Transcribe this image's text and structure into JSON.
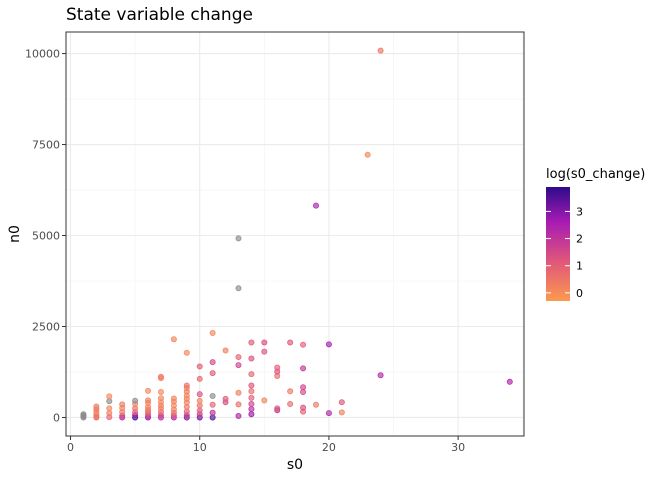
{
  "chart_data": {
    "type": "scatter",
    "title": "State variable change",
    "xlabel": "s0",
    "ylabel": "n0",
    "xlim": [
      -0.35,
      35.1
    ],
    "ylim": [
      -509,
      10592
    ],
    "x_ticks": [
      0,
      10,
      20,
      30
    ],
    "y_ticks": [
      0,
      2500,
      5000,
      7500,
      10000
    ],
    "x_tick_labels": [
      "0",
      "10",
      "20",
      "30"
    ],
    "y_tick_labels": [
      "0",
      "2500",
      "5000",
      "7500",
      "10000"
    ],
    "grid": true,
    "legend": {
      "title": "log(s0_change)",
      "placement": "right",
      "range": [
        -0.3,
        3.9
      ],
      "breaks": [
        0,
        1,
        2,
        3
      ],
      "break_labels": [
        "0",
        "1",
        "2",
        "3"
      ],
      "gradient_colors": [
        "#fb9a4f",
        "#e0567a",
        "#a61ab4",
        "#2d0b8a"
      ],
      "na_color": "#8c8c8c"
    },
    "points": [
      {
        "x": 1,
        "y": 0,
        "c": null
      },
      {
        "x": 1,
        "y": 30,
        "c": null
      },
      {
        "x": 1,
        "y": 60,
        "c": null
      },
      {
        "x": 1,
        "y": 90,
        "c": null
      },
      {
        "x": 2,
        "y": 20,
        "c": 0.2
      },
      {
        "x": 2,
        "y": 80,
        "c": 0.4
      },
      {
        "x": 2,
        "y": 150,
        "c": 0.1
      },
      {
        "x": 2,
        "y": 230,
        "c": 0.5
      },
      {
        "x": 2,
        "y": 300,
        "c": 0.3
      },
      {
        "x": 2,
        "y": 0,
        "c": 0.6
      },
      {
        "x": 3,
        "y": 10,
        "c": 0.8
      },
      {
        "x": 3,
        "y": 120,
        "c": 0.3
      },
      {
        "x": 3,
        "y": 250,
        "c": 0.1
      },
      {
        "x": 3,
        "y": 450,
        "c": null
      },
      {
        "x": 3,
        "y": 580,
        "c": 0.1
      },
      {
        "x": 4,
        "y": 0,
        "c": 2.3
      },
      {
        "x": 4,
        "y": 50,
        "c": 1.5
      },
      {
        "x": 4,
        "y": 150,
        "c": 0.4
      },
      {
        "x": 4,
        "y": 260,
        "c": 0.2
      },
      {
        "x": 4,
        "y": 360,
        "c": 0.3
      },
      {
        "x": 5,
        "y": 0,
        "c": 3.8
      },
      {
        "x": 5,
        "y": 60,
        "c": 2.8
      },
      {
        "x": 5,
        "y": 140,
        "c": 1.2
      },
      {
        "x": 5,
        "y": 250,
        "c": 0.6
      },
      {
        "x": 5,
        "y": 370,
        "c": 0.2
      },
      {
        "x": 5,
        "y": 460,
        "c": null
      },
      {
        "x": 6,
        "y": 0,
        "c": 2.9
      },
      {
        "x": 6,
        "y": 40,
        "c": 1.8
      },
      {
        "x": 6,
        "y": 110,
        "c": 1.1
      },
      {
        "x": 6,
        "y": 170,
        "c": 0.7
      },
      {
        "x": 6,
        "y": 220,
        "c": 0.4
      },
      {
        "x": 6,
        "y": 290,
        "c": 0.2
      },
      {
        "x": 6,
        "y": 400,
        "c": 0.1
      },
      {
        "x": 6,
        "y": 470,
        "c": 0.3
      },
      {
        "x": 6,
        "y": 730,
        "c": 0.1
      },
      {
        "x": 7,
        "y": 0,
        "c": 2.3
      },
      {
        "x": 7,
        "y": 60,
        "c": 1.6
      },
      {
        "x": 7,
        "y": 150,
        "c": 0.8
      },
      {
        "x": 7,
        "y": 250,
        "c": 0.4
      },
      {
        "x": 7,
        "y": 330,
        "c": 0.2
      },
      {
        "x": 7,
        "y": 420,
        "c": 0.1
      },
      {
        "x": 7,
        "y": 530,
        "c": 0.2
      },
      {
        "x": 7,
        "y": 700,
        "c": 0.1
      },
      {
        "x": 7,
        "y": 1080,
        "c": 0.2
      },
      {
        "x": 7,
        "y": 1120,
        "c": 0.4
      },
      {
        "x": 8,
        "y": 0,
        "c": 2.4
      },
      {
        "x": 8,
        "y": 50,
        "c": 1.3
      },
      {
        "x": 8,
        "y": 130,
        "c": 0.6
      },
      {
        "x": 8,
        "y": 220,
        "c": 0.3
      },
      {
        "x": 8,
        "y": 330,
        "c": 0.1
      },
      {
        "x": 8,
        "y": 440,
        "c": 0.2
      },
      {
        "x": 8,
        "y": 520,
        "c": 0.1
      },
      {
        "x": 8,
        "y": 2150,
        "c": 0.2
      },
      {
        "x": 9,
        "y": 0,
        "c": 3.1
      },
      {
        "x": 9,
        "y": 60,
        "c": 1.9
      },
      {
        "x": 9,
        "y": 160,
        "c": 1.0
      },
      {
        "x": 9,
        "y": 290,
        "c": 0.5
      },
      {
        "x": 9,
        "y": 410,
        "c": 0.2
      },
      {
        "x": 9,
        "y": 510,
        "c": 0.3
      },
      {
        "x": 9,
        "y": 600,
        "c": 0.1
      },
      {
        "x": 9,
        "y": 710,
        "c": 0.4
      },
      {
        "x": 9,
        "y": 810,
        "c": 0.2
      },
      {
        "x": 9,
        "y": 880,
        "c": 0.6
      },
      {
        "x": 9,
        "y": 1780,
        "c": 0.1
      },
      {
        "x": 10,
        "y": 0,
        "c": 3.2
      },
      {
        "x": 10,
        "y": 90,
        "c": 1.8
      },
      {
        "x": 10,
        "y": 190,
        "c": 1.1
      },
      {
        "x": 10,
        "y": 330,
        "c": 0.6
      },
      {
        "x": 10,
        "y": 460,
        "c": 0.2
      },
      {
        "x": 10,
        "y": 640,
        "c": 1.3
      },
      {
        "x": 10,
        "y": 1060,
        "c": 0.8
      },
      {
        "x": 10,
        "y": 1400,
        "c": 1.0
      },
      {
        "x": 11,
        "y": 0,
        "c": 3.5
      },
      {
        "x": 11,
        "y": 130,
        "c": 2.1
      },
      {
        "x": 11,
        "y": 350,
        "c": 0.9
      },
      {
        "x": 11,
        "y": 590,
        "c": null
      },
      {
        "x": 11,
        "y": 1220,
        "c": 1.1
      },
      {
        "x": 11,
        "y": 1520,
        "c": 1.5
      },
      {
        "x": 11,
        "y": 2320,
        "c": 0.1
      },
      {
        "x": 12,
        "y": 420,
        "c": 1.5
      },
      {
        "x": 12,
        "y": 510,
        "c": 1.1
      },
      {
        "x": 12,
        "y": 1840,
        "c": 0.3
      },
      {
        "x": 13,
        "y": 40,
        "c": 2.4
      },
      {
        "x": 13,
        "y": 360,
        "c": 0.6
      },
      {
        "x": 13,
        "y": 680,
        "c": 0.3
      },
      {
        "x": 13,
        "y": 1440,
        "c": 1.6
      },
      {
        "x": 13,
        "y": 1660,
        "c": 0.9
      },
      {
        "x": 13,
        "y": 3550,
        "c": null
      },
      {
        "x": 13,
        "y": 4920,
        "c": null
      },
      {
        "x": 14,
        "y": 90,
        "c": 2.8
      },
      {
        "x": 14,
        "y": 230,
        "c": 2.2
      },
      {
        "x": 14,
        "y": 370,
        "c": 1.6
      },
      {
        "x": 14,
        "y": 540,
        "c": 1.0
      },
      {
        "x": 14,
        "y": 720,
        "c": 0.6
      },
      {
        "x": 14,
        "y": 880,
        "c": 1.2
      },
      {
        "x": 14,
        "y": 1190,
        "c": 0.8
      },
      {
        "x": 14,
        "y": 1620,
        "c": 1.3
      },
      {
        "x": 14,
        "y": 2060,
        "c": 1.1
      },
      {
        "x": 15,
        "y": 470,
        "c": 0.2
      },
      {
        "x": 15,
        "y": 1810,
        "c": 1.2
      },
      {
        "x": 15,
        "y": 2060,
        "c": 1.4
      },
      {
        "x": 16,
        "y": 200,
        "c": 2.0
      },
      {
        "x": 16,
        "y": 250,
        "c": 1.2
      },
      {
        "x": 16,
        "y": 1140,
        "c": 0.6
      },
      {
        "x": 16,
        "y": 1260,
        "c": 1.3
      },
      {
        "x": 16,
        "y": 1370,
        "c": 1.0
      },
      {
        "x": 17,
        "y": 370,
        "c": 0.7
      },
      {
        "x": 17,
        "y": 720,
        "c": 0.4
      },
      {
        "x": 17,
        "y": 2060,
        "c": 1.2
      },
      {
        "x": 18,
        "y": 160,
        "c": 0.9
      },
      {
        "x": 18,
        "y": 270,
        "c": 1.3
      },
      {
        "x": 18,
        "y": 700,
        "c": 1.5
      },
      {
        "x": 18,
        "y": 830,
        "c": 1.6
      },
      {
        "x": 18,
        "y": 1350,
        "c": 1.9
      },
      {
        "x": 18,
        "y": 2000,
        "c": 1.0
      },
      {
        "x": 19,
        "y": 350,
        "c": 0.4
      },
      {
        "x": 19,
        "y": 5820,
        "c": 2.4
      },
      {
        "x": 20,
        "y": 120,
        "c": 2.3
      },
      {
        "x": 20,
        "y": 2010,
        "c": 2.6
      },
      {
        "x": 21,
        "y": 140,
        "c": 0.3
      },
      {
        "x": 21,
        "y": 420,
        "c": 1.2
      },
      {
        "x": 23,
        "y": 7220,
        "c": 0.1
      },
      {
        "x": 24,
        "y": 1160,
        "c": 2.3
      },
      {
        "x": 24,
        "y": 10080,
        "c": 0.5
      },
      {
        "x": 34,
        "y": 980,
        "c": 2.4
      }
    ]
  }
}
